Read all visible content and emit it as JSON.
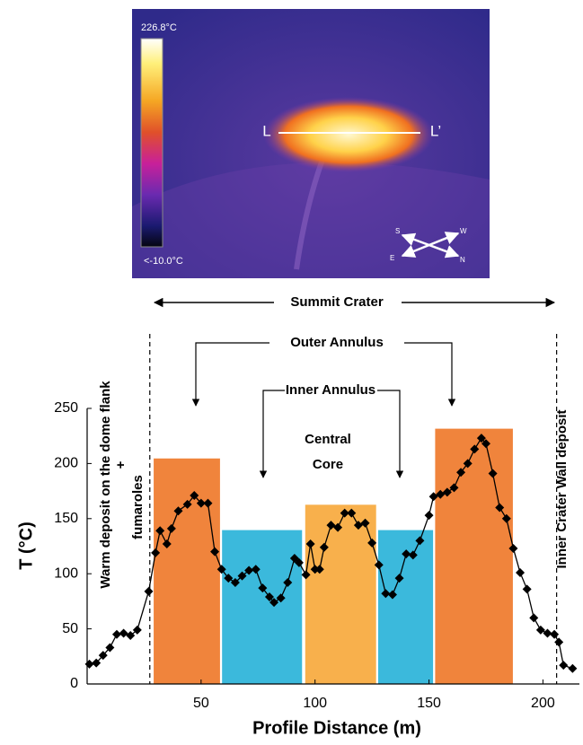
{
  "thermal_image": {
    "max_label": "226.8°C",
    "min_label": "<-10.0°C",
    "profile_start": "L",
    "profile_end": "L’",
    "compass": [
      "S",
      "W",
      "E",
      "N"
    ]
  },
  "chart_data": {
    "type": "line",
    "xlabel": "Profile Distance (m)",
    "ylabel": "T (°C)",
    "xlim": [
      0,
      216
    ],
    "ylim": [
      0,
      250
    ],
    "xticks": [
      50,
      100,
      150,
      200
    ],
    "yticks": [
      0,
      50,
      100,
      150,
      200,
      250
    ],
    "annotations": {
      "summit": "Summit Crater",
      "outer": "Outer Annulus",
      "inner": "Inner Annulus",
      "core": [
        "Central",
        "Core"
      ],
      "left_deposit": [
        "Warm deposit on the dome flank",
        "+",
        "fumaroles"
      ],
      "right_deposit": "Inner Crater Wall deposit"
    },
    "reference_lines": [
      27.5,
      206
    ],
    "regions": [
      {
        "x0": 29,
        "x1": 58.5,
        "value": 205,
        "color": "#f0843c"
      },
      {
        "x0": 59,
        "x1": 94.5,
        "value": 140,
        "color": "#3bb9dc"
      },
      {
        "x0": 95.5,
        "x1": 127,
        "value": 163,
        "color": "#f8b04c"
      },
      {
        "x0": 127.5,
        "x1": 152,
        "value": 140,
        "color": "#3bb9dc"
      },
      {
        "x0": 152.5,
        "x1": 187,
        "value": 232,
        "color": "#f0843c"
      }
    ],
    "series": [
      {
        "color": "#000000",
        "x": [
          1,
          4,
          7,
          10,
          13,
          16,
          19,
          22,
          27,
          30,
          32,
          35,
          37,
          40,
          44,
          47,
          50,
          53,
          56,
          59,
          62,
          65,
          68,
          71,
          74,
          77,
          80,
          82,
          85,
          88,
          91,
          93,
          96,
          98,
          100,
          102,
          104,
          107,
          110,
          113,
          116,
          119,
          122,
          125,
          128,
          131,
          134,
          137,
          140,
          143,
          146,
          150,
          152,
          155,
          158,
          161,
          164,
          167,
          170,
          173,
          175,
          178,
          181,
          184,
          187,
          190,
          193,
          196,
          199,
          202,
          205,
          207,
          209,
          213
        ],
        "values": [
          18,
          19,
          26,
          33,
          45,
          46,
          44,
          49,
          84,
          119,
          139,
          127,
          141,
          157,
          163,
          171,
          164,
          164,
          120,
          104,
          96,
          92,
          98,
          103,
          104,
          87,
          79,
          74,
          78,
          92,
          114,
          110,
          99,
          127,
          104,
          104,
          124,
          144,
          142,
          155,
          155,
          144,
          146,
          128,
          108,
          82,
          81,
          96,
          118,
          117,
          130,
          153,
          170,
          172,
          174,
          178,
          192,
          200,
          213,
          223,
          218,
          191,
          160,
          150,
          123,
          101,
          86,
          60,
          49,
          46,
          45,
          38,
          17,
          14
        ]
      }
    ]
  }
}
